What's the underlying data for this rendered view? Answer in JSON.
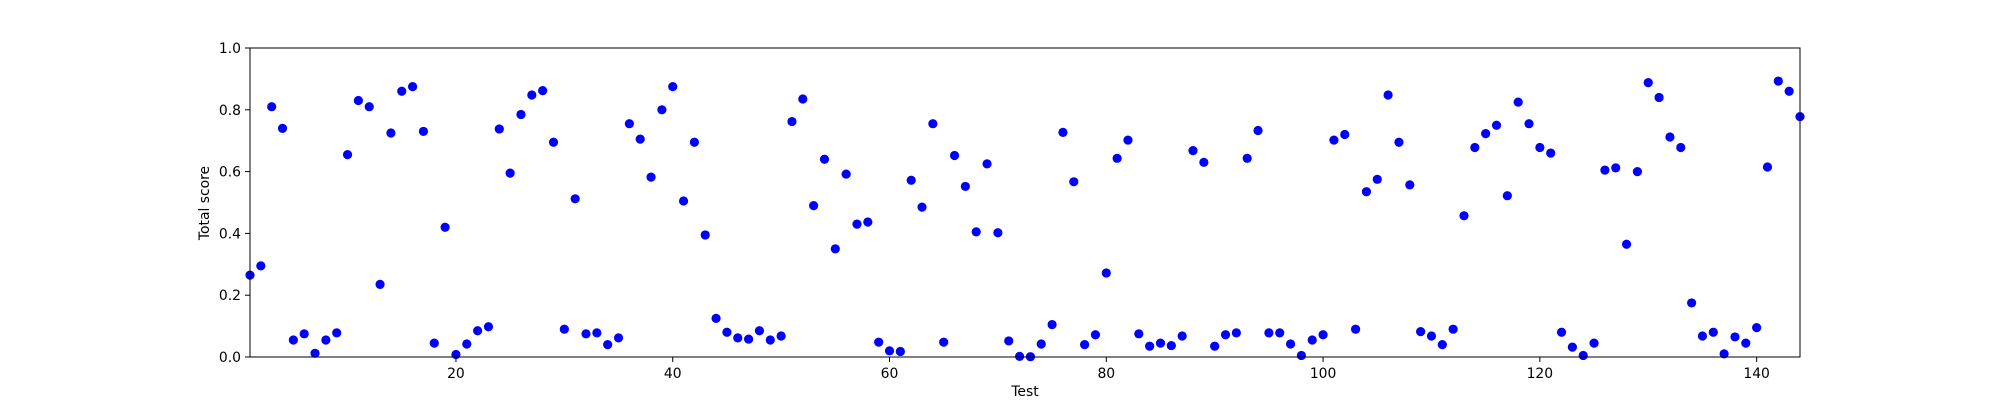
{
  "chart_data": {
    "type": "scatter",
    "xlabel": "Test",
    "ylabel": "Total score",
    "xlim": [
      1,
      144
    ],
    "ylim": [
      0.0,
      1.0
    ],
    "x_ticks": [
      20,
      40,
      60,
      80,
      100,
      120,
      140
    ],
    "y_ticks": [
      0.0,
      0.2,
      0.4,
      0.6,
      0.8,
      1.0
    ],
    "x_tick_labels": [
      "20",
      "40",
      "60",
      "80",
      "100",
      "120",
      "140"
    ],
    "y_tick_labels": [
      "0.0",
      "0.2",
      "0.4",
      "0.6",
      "0.8",
      "1.0"
    ],
    "grid": false,
    "marker_color": "#0000ff",
    "x": [
      1,
      2,
      3,
      4,
      5,
      6,
      7,
      8,
      9,
      10,
      11,
      12,
      13,
      14,
      15,
      16,
      17,
      18,
      19,
      20,
      21,
      22,
      23,
      24,
      25,
      26,
      27,
      28,
      29,
      30,
      31,
      32,
      33,
      34,
      35,
      36,
      37,
      38,
      39,
      40,
      41,
      42,
      43,
      44,
      45,
      46,
      47,
      48,
      49,
      50,
      51,
      52,
      53,
      54,
      55,
      56,
      57,
      58,
      59,
      60,
      61,
      62,
      63,
      64,
      65,
      66,
      67,
      68,
      69,
      70,
      71,
      72,
      73,
      74,
      75,
      76,
      77,
      78,
      79,
      80,
      81,
      82,
      83,
      84,
      85,
      86,
      87,
      88,
      89,
      90,
      91,
      92,
      93,
      94,
      95,
      96,
      97,
      98,
      99,
      100,
      101,
      102,
      103,
      104,
      105,
      106,
      107,
      108,
      109,
      110,
      111,
      112,
      113,
      114,
      115,
      116,
      117,
      118,
      119,
      120,
      121,
      122,
      123,
      124,
      125,
      126,
      127,
      128,
      129,
      130,
      131,
      132,
      133,
      134,
      135,
      136,
      137,
      138,
      139,
      140,
      141,
      142,
      143,
      144
    ],
    "y": [
      0.265,
      0.295,
      0.81,
      0.74,
      0.055,
      0.075,
      0.012,
      0.055,
      0.078,
      0.655,
      0.83,
      0.81,
      0.235,
      0.725,
      0.86,
      0.875,
      0.73,
      0.045,
      0.42,
      0.008,
      0.042,
      0.085,
      0.098,
      0.738,
      0.595,
      0.785,
      0.848,
      0.862,
      0.695,
      0.09,
      0.512,
      0.075,
      0.078,
      0.04,
      0.062,
      0.755,
      0.705,
      0.582,
      0.8,
      0.875,
      0.505,
      0.695,
      0.395,
      0.125,
      0.08,
      0.062,
      0.058,
      0.085,
      0.055,
      0.068,
      0.762,
      0.835,
      0.49,
      0.64,
      0.35,
      0.592,
      0.43,
      0.437,
      0.048,
      0.02,
      0.018,
      0.572,
      0.485,
      0.755,
      0.048,
      0.652,
      0.552,
      0.405,
      0.625,
      0.402,
      0.052,
      0.002,
      0.001,
      0.042,
      0.105,
      0.727,
      0.567,
      0.04,
      0.072,
      0.272,
      0.643,
      0.702,
      0.075,
      0.035,
      0.045,
      0.037,
      0.068,
      0.668,
      0.63,
      0.035,
      0.072,
      0.078,
      0.643,
      0.733,
      0.078,
      0.078,
      0.042,
      0.005,
      0.055,
      0.072,
      0.702,
      0.72,
      0.09,
      0.535,
      0.575,
      0.848,
      0.695,
      0.557,
      0.082,
      0.068,
      0.04,
      0.09,
      0.457,
      0.678,
      0.723,
      0.75,
      0.522,
      0.825,
      0.755,
      0.678,
      0.66,
      0.08,
      0.032,
      0.005,
      0.045,
      0.605,
      0.612,
      0.365,
      0.6,
      0.888,
      0.84,
      0.712,
      0.678,
      0.175,
      0.068,
      0.08,
      0.01,
      0.065,
      0.045,
      0.095,
      0.615,
      0.893,
      0.86,
      0.778
    ]
  }
}
